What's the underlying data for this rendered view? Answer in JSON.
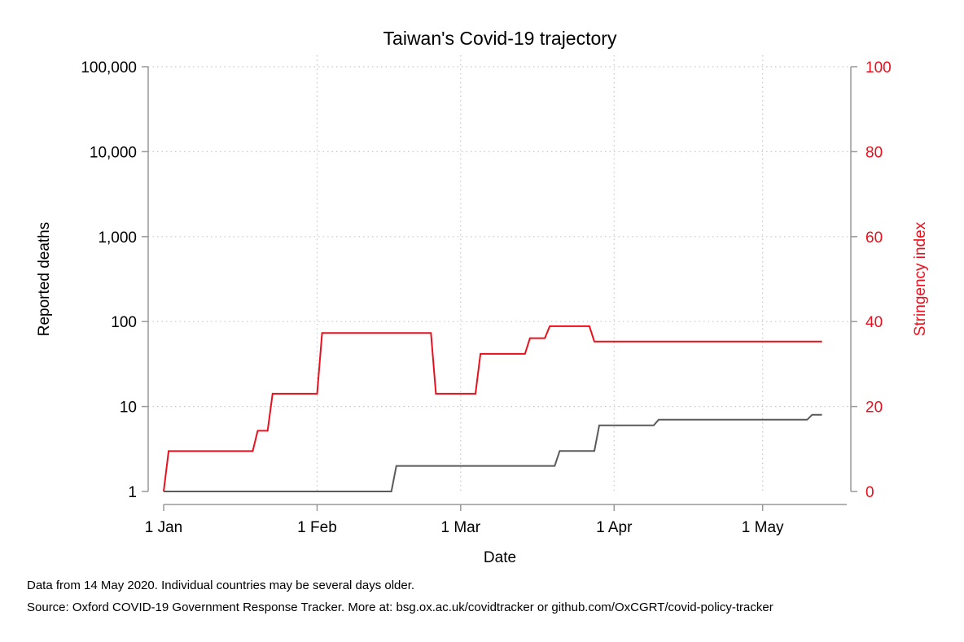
{
  "chart_data": {
    "type": "line",
    "title": "Taiwan's Covid-19 trajectory",
    "xlabel": "Date",
    "ylabel_left": "Reported deaths",
    "ylabel_right": "Stringency index",
    "x_axis": {
      "range": [
        "2020-01-01",
        "2020-05-14"
      ],
      "ticks": [
        {
          "date": "2020-01-01",
          "label": "1 Jan"
        },
        {
          "date": "2020-02-01",
          "label": "1 Feb"
        },
        {
          "date": "2020-03-01",
          "label": "1 Mar"
        },
        {
          "date": "2020-04-01",
          "label": "1 Apr"
        },
        {
          "date": "2020-05-01",
          "label": "1 May"
        }
      ]
    },
    "y_left": {
      "scale": "log",
      "range": [
        1,
        100000
      ],
      "ticks": [
        {
          "value": 1,
          "label": "1"
        },
        {
          "value": 10,
          "label": "10"
        },
        {
          "value": 100,
          "label": "100"
        },
        {
          "value": 1000,
          "label": "1,000"
        },
        {
          "value": 10000,
          "label": "10,000"
        },
        {
          "value": 100000,
          "label": "100,000"
        }
      ]
    },
    "y_right": {
      "scale": "linear",
      "range": [
        0,
        100
      ],
      "ticks": [
        {
          "value": 0,
          "label": "0"
        },
        {
          "value": 20,
          "label": "20"
        },
        {
          "value": 40,
          "label": "40"
        },
        {
          "value": 60,
          "label": "60"
        },
        {
          "value": 80,
          "label": "80"
        },
        {
          "value": 100,
          "label": "100"
        }
      ]
    },
    "grid": true,
    "series": [
      {
        "name": "Reported deaths",
        "axis": "left",
        "color": "#5a5a5a",
        "points": [
          {
            "date": "2020-01-01",
            "value": 1
          },
          {
            "date": "2020-02-16",
            "value": 1
          },
          {
            "date": "2020-02-17",
            "value": 2
          },
          {
            "date": "2020-03-20",
            "value": 2
          },
          {
            "date": "2020-03-21",
            "value": 3
          },
          {
            "date": "2020-03-28",
            "value": 3
          },
          {
            "date": "2020-03-29",
            "value": 6
          },
          {
            "date": "2020-04-09",
            "value": 6
          },
          {
            "date": "2020-04-10",
            "value": 7
          },
          {
            "date": "2020-05-10",
            "value": 7
          },
          {
            "date": "2020-05-11",
            "value": 8
          },
          {
            "date": "2020-05-13",
            "value": 8
          }
        ]
      },
      {
        "name": "Stringency index",
        "axis": "right",
        "color": "#e8111d",
        "points": [
          {
            "date": "2020-01-01",
            "value": 0
          },
          {
            "date": "2020-01-02",
            "value": 9.5
          },
          {
            "date": "2020-01-19",
            "value": 9.5
          },
          {
            "date": "2020-01-20",
            "value": 14.3
          },
          {
            "date": "2020-01-22",
            "value": 14.3
          },
          {
            "date": "2020-01-23",
            "value": 23.0
          },
          {
            "date": "2020-02-01",
            "value": 23.0
          },
          {
            "date": "2020-02-02",
            "value": 37.3
          },
          {
            "date": "2020-02-24",
            "value": 37.3
          },
          {
            "date": "2020-02-25",
            "value": 23.0
          },
          {
            "date": "2020-03-04",
            "value": 23.0
          },
          {
            "date": "2020-03-05",
            "value": 32.4
          },
          {
            "date": "2020-03-14",
            "value": 32.4
          },
          {
            "date": "2020-03-15",
            "value": 36.1
          },
          {
            "date": "2020-03-18",
            "value": 36.1
          },
          {
            "date": "2020-03-19",
            "value": 38.9
          },
          {
            "date": "2020-03-27",
            "value": 38.9
          },
          {
            "date": "2020-03-28",
            "value": 35.3
          },
          {
            "date": "2020-05-13",
            "value": 35.3
          }
        ]
      }
    ]
  },
  "footnotes": {
    "line1": "Data from 14 May 2020. Individual countries may be several days older.",
    "line2": "Source: Oxford COVID-19 Government Response Tracker. More at: bsg.ox.ac.uk/covidtracker or github.com/OxCGRT/covid-policy-tracker"
  },
  "colors": {
    "deaths": "#5a5a5a",
    "stringency": "#e8111d",
    "axis": "#999999",
    "grid": "#c8c8c8"
  }
}
